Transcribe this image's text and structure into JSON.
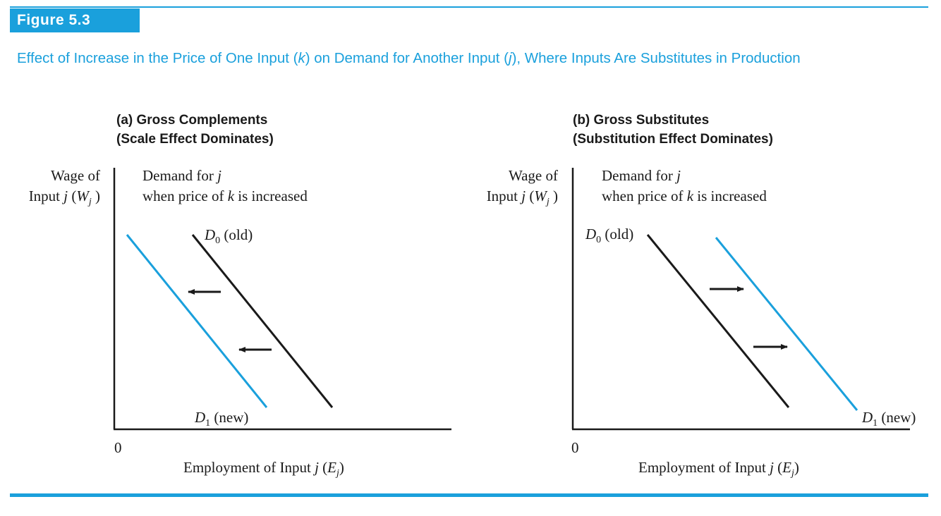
{
  "figure": {
    "label": "Figure 5.3",
    "caption_pre": "Effect of Increase in the Price of One Input (",
    "caption_k": "k",
    "caption_mid": ") on Demand for Another Input (",
    "caption_j": "j",
    "caption_post": "), Where Inputs Are Substitutes in Production"
  },
  "panel_a": {
    "title_line1": "(a) Gross Complements",
    "title_line2": "(Scale Effect Dominates)",
    "y_label_line1": "Wage of",
    "y_label_line2_pre": "Input ",
    "y_label_j": "j",
    "y_label_W": "W",
    "y_label_sub": "j",
    "note_line1_pre": "Demand for ",
    "note_j": "j",
    "note_line2_pre": "when price of ",
    "note_k": "k",
    "note_line2_post": " is increased",
    "d0_letter": "D",
    "d0_sub": "0",
    "d0_text": "(old)",
    "d1_letter": "D",
    "d1_sub": "1",
    "d1_text": "(new)",
    "origin": "0",
    "x_label_pre": "Employment of Input ",
    "x_label_j": "j",
    "x_label_E": "E",
    "x_label_sub": "j",
    "shift_direction": "left"
  },
  "panel_b": {
    "title_line1": "(b) Gross Substitutes",
    "title_line2": "(Substitution Effect Dominates)",
    "y_label_line1": "Wage of",
    "y_label_line2_pre": "Input ",
    "y_label_j": "j",
    "y_label_W": "W",
    "y_label_sub": "j",
    "note_line1_pre": "Demand for ",
    "note_j": "j",
    "note_line2_pre": "when price of ",
    "note_k": "k",
    "note_line2_post": " is increased",
    "d0_letter": "D",
    "d0_sub": "0",
    "d0_text": "(old)",
    "d1_letter": "D",
    "d1_sub": "1",
    "d1_text": "(new)",
    "origin": "0",
    "x_label_pre": "Employment of Input ",
    "x_label_j": "j",
    "x_label_E": "E",
    "x_label_sub": "j",
    "shift_direction": "right"
  },
  "colors": {
    "accent": "#1aa0dc",
    "old_curve": "#1a1a1a",
    "new_curve": "#1aa0dc"
  }
}
